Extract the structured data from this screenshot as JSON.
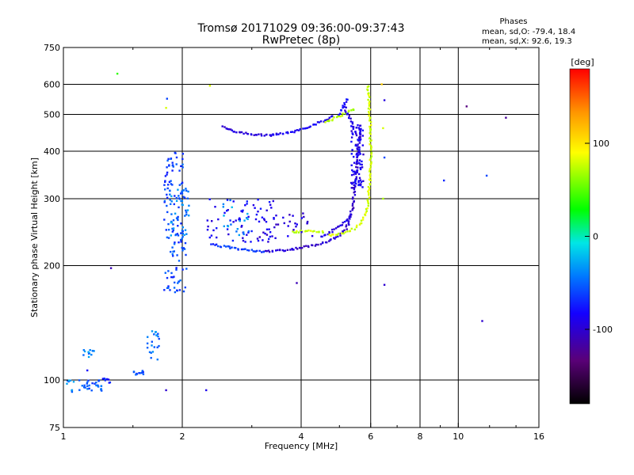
{
  "chart_data": {
    "type": "scatter",
    "title": "Tromsø 20171029 09:36:00-09:37:43",
    "subtitle": "RwPretec (8p)",
    "xlabel": "Frequency [MHz]",
    "ylabel": "Stationary phase Virtual Height [km]",
    "x_scale": "log",
    "y_scale": "log",
    "xlim": [
      1,
      16
    ],
    "ylim": [
      75,
      750
    ],
    "x_ticks": [
      {
        "value": 1,
        "label": "1"
      },
      {
        "value": 2,
        "label": "2"
      },
      {
        "value": 4,
        "label": "4"
      },
      {
        "value": 6,
        "label": "6"
      },
      {
        "value": 8,
        "label": "8"
      },
      {
        "value": 10,
        "label": "10"
      },
      {
        "value": 16,
        "label": "16"
      }
    ],
    "y_ticks": [
      {
        "value": 75,
        "label": "75"
      },
      {
        "value": 100,
        "label": "100"
      },
      {
        "value": 200,
        "label": "200"
      },
      {
        "value": 300,
        "label": "300"
      },
      {
        "value": 400,
        "label": "400"
      },
      {
        "value": 500,
        "label": "500"
      },
      {
        "value": 600,
        "label": "600"
      },
      {
        "value": 750,
        "label": "750"
      }
    ],
    "grid": true,
    "phases_box": {
      "heading": "Phases",
      "line_o": "mean, sd,O: -79.4, 18.4",
      "line_x": "mean, sd,X:  92.6, 19.3"
    },
    "colorbar": {
      "label": "[deg]",
      "range": [
        -180,
        180
      ],
      "ticks": [
        {
          "value": 100,
          "label": "100"
        },
        {
          "value": 0,
          "label": "0"
        },
        {
          "value": -100,
          "label": "-100"
        }
      ],
      "colors": [
        "#000000",
        "#5a0078",
        "#1400ff",
        "#0078ff",
        "#00e6e6",
        "#00ff00",
        "#ffff00",
        "#ff9600",
        "#ff0000"
      ]
    },
    "traces": [
      {
        "kind": "curve",
        "phase": -95,
        "pts": [
          [
            3.35,
            440
          ],
          [
            3.0,
            443
          ],
          [
            2.7,
            452
          ],
          [
            2.5,
            466
          ]
        ]
      },
      {
        "kind": "curve",
        "phase": -88,
        "pts": [
          [
            3.35,
            440
          ],
          [
            3.8,
            449
          ],
          [
            4.2,
            465
          ],
          [
            4.55,
            480
          ],
          [
            4.85,
            498
          ]
        ]
      },
      {
        "kind": "curve",
        "phase": 70,
        "pts": [
          [
            4.6,
            478
          ],
          [
            4.9,
            490
          ],
          [
            5.2,
            505
          ],
          [
            5.5,
            518
          ]
        ]
      },
      {
        "kind": "curve",
        "phase": -80,
        "pts": [
          [
            5.0,
            500
          ],
          [
            5.15,
            530
          ],
          [
            5.25,
            555
          ]
        ]
      },
      {
        "kind": "curve",
        "phase": -100,
        "pts": [
          [
            3.2,
            218
          ],
          [
            3.7,
            220
          ],
          [
            4.2,
            225
          ],
          [
            4.7,
            232
          ],
          [
            5.0,
            240
          ],
          [
            5.2,
            250
          ],
          [
            5.3,
            262
          ],
          [
            5.4,
            285
          ],
          [
            5.45,
            310
          ],
          [
            5.5,
            340
          ],
          [
            5.55,
            380
          ],
          [
            5.6,
            420
          ],
          [
            5.65,
            460
          ]
        ]
      },
      {
        "kind": "curve",
        "phase": -65,
        "pts": [
          [
            3.2,
            218
          ],
          [
            2.9,
            220
          ],
          [
            2.6,
            224
          ],
          [
            2.35,
            228
          ]
        ]
      },
      {
        "kind": "curve",
        "phase": -90,
        "pts": [
          [
            4.5,
            238
          ],
          [
            4.9,
            250
          ],
          [
            5.2,
            262
          ],
          [
            5.4,
            275
          ]
        ]
      },
      {
        "kind": "curve",
        "phase": 75,
        "pts": [
          [
            3.8,
            245
          ],
          [
            4.2,
            247
          ],
          [
            4.6,
            245
          ]
        ]
      },
      {
        "kind": "curve",
        "phase": 80,
        "pts": [
          [
            4.7,
            240
          ],
          [
            5.0,
            242
          ],
          [
            5.3,
            246
          ],
          [
            5.6,
            255
          ],
          [
            5.8,
            270
          ],
          [
            5.9,
            290
          ],
          [
            5.95,
            320
          ],
          [
            6.0,
            360
          ],
          [
            6.0,
            410
          ],
          [
            5.98,
            470
          ],
          [
            5.95,
            530
          ],
          [
            5.9,
            600
          ]
        ]
      },
      {
        "kind": "curve",
        "phase": -95,
        "pts": [
          [
            5.15,
            525
          ],
          [
            5.3,
            490
          ],
          [
            5.45,
            470
          ]
        ]
      },
      {
        "kind": "cloud",
        "phase": -60,
        "x": [
          1.8,
          2.05
        ],
        "y": [
          170,
          400
        ],
        "n": 130
      },
      {
        "kind": "cloud",
        "phase": -40,
        "x": [
          1.85,
          2.08
        ],
        "y": [
          240,
          320
        ],
        "n": 40
      },
      {
        "kind": "cloud",
        "phase": -85,
        "x": [
          2.3,
          3.5
        ],
        "y": [
          230,
          300
        ],
        "n": 70
      },
      {
        "kind": "cloud",
        "phase": -95,
        "x": [
          3.1,
          4.3
        ],
        "y": [
          230,
          275
        ],
        "n": 30
      },
      {
        "kind": "cloud",
        "phase": -35,
        "x": [
          2.5,
          3.0
        ],
        "y": [
          240,
          300
        ],
        "n": 20
      },
      {
        "kind": "cloud",
        "phase": -90,
        "x": [
          5.35,
          5.75
        ],
        "y": [
          320,
          470
        ],
        "n": 90
      },
      {
        "kind": "cloud",
        "phase": -40,
        "x": [
          1.02,
          1.12
        ],
        "y": [
          92,
          100
        ],
        "n": 12
      },
      {
        "kind": "cloud",
        "phase": -55,
        "x": [
          1.12,
          1.25
        ],
        "y": [
          93,
          100
        ],
        "n": 25
      },
      {
        "kind": "cloud",
        "phase": -40,
        "x": [
          1.1,
          1.2
        ],
        "y": [
          115,
          120
        ],
        "n": 12
      },
      {
        "kind": "cloud",
        "phase": -70,
        "x": [
          1.25,
          1.32
        ],
        "y": [
          98,
          101
        ],
        "n": 8
      },
      {
        "kind": "cloud",
        "phase": -55,
        "x": [
          1.5,
          1.6
        ],
        "y": [
          103,
          106
        ],
        "n": 12
      },
      {
        "kind": "cloud",
        "phase": -45,
        "x": [
          1.62,
          1.75
        ],
        "y": [
          110,
          135
        ],
        "n": 22
      },
      {
        "kind": "point",
        "phase": 40,
        "x": 1.37,
        "y": 640
      },
      {
        "kind": "point",
        "phase": -60,
        "x": 1.83,
        "y": 550
      },
      {
        "kind": "point",
        "phase": 80,
        "x": 1.82,
        "y": 520
      },
      {
        "kind": "point",
        "phase": -110,
        "x": 1.32,
        "y": 197
      },
      {
        "kind": "point",
        "phase": -100,
        "x": 1.82,
        "y": 94
      },
      {
        "kind": "point",
        "phase": -80,
        "x": 1.15,
        "y": 106
      },
      {
        "kind": "point",
        "phase": -90,
        "x": 2.3,
        "y": 94
      },
      {
        "kind": "point",
        "phase": 80,
        "x": 2.35,
        "y": 595
      },
      {
        "kind": "point",
        "phase": -95,
        "x": 6.5,
        "y": 545
      },
      {
        "kind": "point",
        "phase": 80,
        "x": 6.45,
        "y": 460
      },
      {
        "kind": "point",
        "phase": 70,
        "x": 6.45,
        "y": 300
      },
      {
        "kind": "point",
        "phase": -60,
        "x": 6.5,
        "y": 385
      },
      {
        "kind": "point",
        "phase": -100,
        "x": 6.5,
        "y": 178
      },
      {
        "kind": "point",
        "phase": 110,
        "x": 6.4,
        "y": 600
      },
      {
        "kind": "point",
        "phase": -70,
        "x": 9.2,
        "y": 335
      },
      {
        "kind": "point",
        "phase": -130,
        "x": 10.5,
        "y": 525
      },
      {
        "kind": "point",
        "phase": -60,
        "x": 11.8,
        "y": 345
      },
      {
        "kind": "point",
        "phase": -100,
        "x": 11.5,
        "y": 143
      },
      {
        "kind": "point",
        "phase": -120,
        "x": 13.2,
        "y": 490
      },
      {
        "kind": "point",
        "phase": -110,
        "x": 3.9,
        "y": 180
      }
    ]
  }
}
